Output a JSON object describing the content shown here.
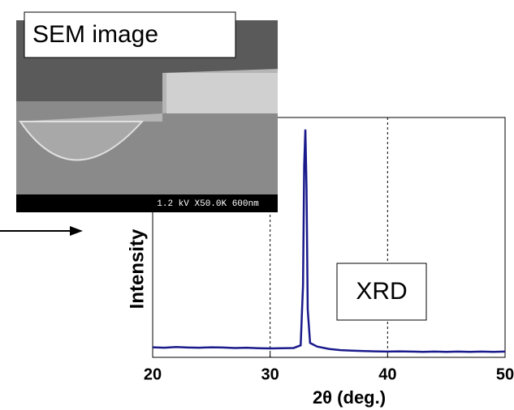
{
  "chart_data": {
    "type": "line",
    "xlabel": "2θ (deg.)",
    "ylabel": "Intensity",
    "x": [
      20,
      21,
      22,
      23,
      24,
      25,
      26,
      27,
      28,
      29,
      30,
      31,
      32,
      32.6,
      32.8,
      32.9,
      33.0,
      33.1,
      33.2,
      33.4,
      34,
      35,
      36,
      37,
      38,
      39,
      40,
      41,
      42,
      43,
      44,
      45,
      46,
      47,
      48,
      49,
      50
    ],
    "series": [
      {
        "name": "XRD",
        "color": "#1a1a8c",
        "values": [
          4.2,
          4.0,
          4.3,
          4.1,
          4.0,
          4.2,
          4.1,
          3.9,
          4.0,
          3.8,
          3.7,
          3.8,
          3.9,
          5,
          30,
          80,
          95,
          70,
          20,
          6,
          4.5,
          3.5,
          3.0,
          2.8,
          2.6,
          2.5,
          2.4,
          2.5,
          2.4,
          2.3,
          2.4,
          2.3,
          2.4,
          2.3,
          2.4,
          2.3,
          2.4
        ]
      }
    ],
    "xlim": [
      20,
      50
    ],
    "xticks": [
      20,
      30,
      40,
      50
    ],
    "ylim": [
      0,
      100
    ],
    "reference_lines": [
      30,
      40
    ],
    "annotations": {
      "sem_label": "SEM image",
      "sem_scale": "1.2 kV X50.0K 600nm",
      "plot_label": "XRD"
    }
  }
}
